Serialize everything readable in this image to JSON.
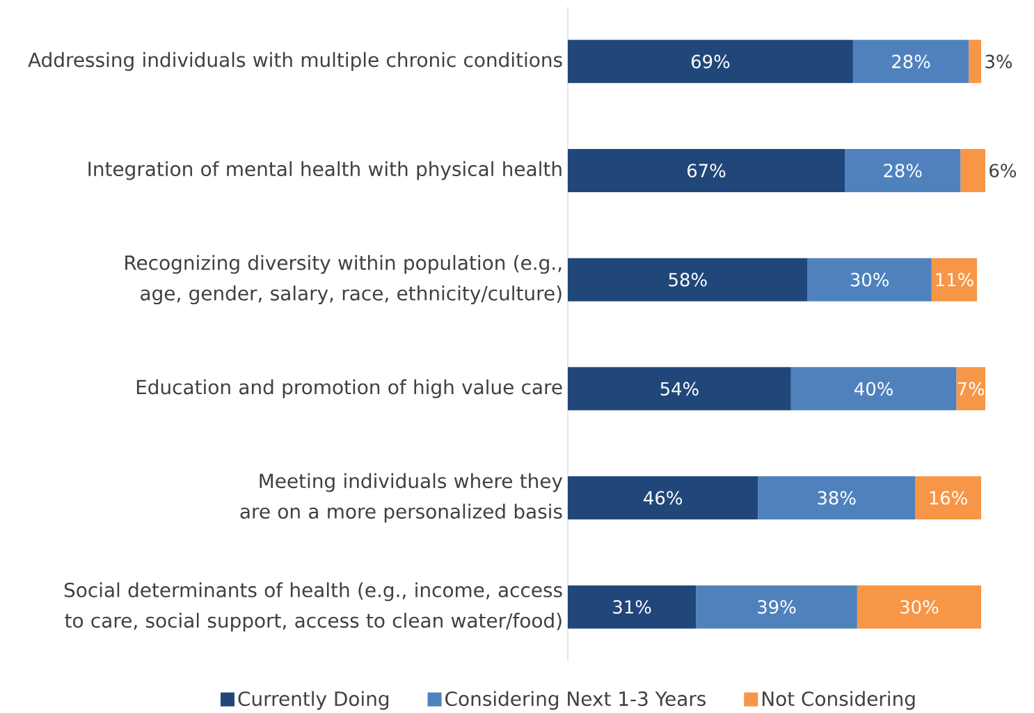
{
  "chart_data": {
    "type": "bar",
    "orientation": "horizontal",
    "stacked": true,
    "categories": [
      "Addressing individuals with multiple chronic conditions",
      "Integration of mental health with physical health",
      "Recognizing diversity within population (e.g., age, gender, salary, race, ethnicity/culture)",
      "Education and promotion of high value care",
      "Meeting individuals where they are on a more personalized basis",
      "Social determinants of health (e.g., income, access to care, social support, access to clean water/food)"
    ],
    "series": [
      {
        "name": "Currently Doing",
        "color": "#21477a",
        "values": [
          69,
          67,
          58,
          54,
          46,
          31
        ],
        "value_labels": [
          "69%",
          "67%",
          "58%",
          "54%",
          "46%",
          "31%"
        ]
      },
      {
        "name": "Considering Next 1-3 Years",
        "color": "#4f81bd",
        "values": [
          28,
          28,
          30,
          40,
          38,
          39
        ],
        "value_labels": [
          "28%",
          "28%",
          "30%",
          "40%",
          "38%",
          "39%"
        ]
      },
      {
        "name": "Not Considering",
        "color": "#f79646",
        "values": [
          3,
          6,
          11,
          7,
          16,
          30
        ],
        "value_labels": [
          "3%",
          "6%",
          "11%",
          "7%",
          "16%",
          "30%"
        ]
      }
    ],
    "legend": "bottom"
  }
}
